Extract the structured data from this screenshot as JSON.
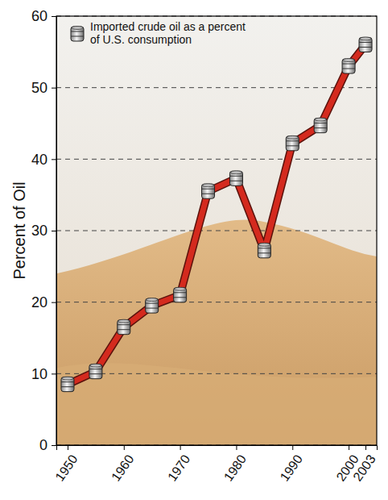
{
  "chart_data": {
    "type": "line",
    "x": [
      1950,
      1955,
      1960,
      1965,
      1970,
      1975,
      1980,
      1985,
      1990,
      1995,
      2000,
      2003
    ],
    "series": [
      {
        "name": "Imported crude oil as a percent of U.S. consumption",
        "color": "#d42a1e",
        "marker": "barrel",
        "line_style": "solid",
        "values": [
          8.5,
          10.3,
          16.5,
          19.5,
          21,
          35.5,
          37.3,
          27.2,
          42.2,
          44.7,
          53,
          56
        ]
      }
    ],
    "y_label": "Percent of Oil",
    "xlim": [
      1948,
      2005
    ],
    "xticks": [
      1950,
      1960,
      1970,
      1980,
      1990,
      2000,
      2003
    ],
    "ylim": [
      0,
      60
    ],
    "yticks": [
      0,
      10,
      20,
      30,
      40,
      50,
      60
    ],
    "grid": true,
    "legend": "upper left"
  }
}
